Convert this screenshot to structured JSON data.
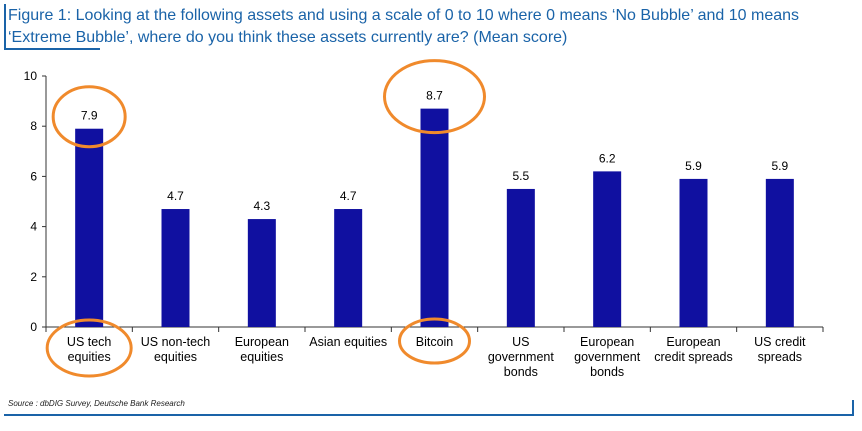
{
  "title": "Figure 1: Looking at the following assets and using a scale of 0 to 10 where 0 means ‘No Bubble’ and 10 means ‘Extreme Bubble’, where do you think these assets currently are? (Mean score)",
  "source": "Source : dbDIG Survey, Deutsche Bank Research",
  "colors": {
    "bar": "#1010a0",
    "highlight": "#f08a2c",
    "title": "#1a63a8",
    "axis": "#333333"
  },
  "chart_data": {
    "type": "bar",
    "title": "Figure 1: Looking at the following assets and using a scale of 0 to 10 where 0 means ‘No Bubble’ and 10 means ‘Extreme Bubble’, where do you think these assets currently are? (Mean score)",
    "categories": [
      [
        "US tech",
        "equities"
      ],
      [
        "US non-tech",
        "equities"
      ],
      [
        "European",
        "equities"
      ],
      [
        "Asian equities"
      ],
      [
        "Bitcoin"
      ],
      [
        "US",
        "government",
        "bonds"
      ],
      [
        "European",
        "government",
        "bonds"
      ],
      [
        "European",
        "credit spreads"
      ],
      [
        "US credit",
        "spreads"
      ]
    ],
    "values": [
      7.9,
      4.7,
      4.3,
      4.7,
      8.7,
      5.5,
      6.2,
      5.9,
      5.9
    ],
    "value_labels": [
      "7.9",
      "4.7",
      "4.3",
      "4.7",
      "8.7",
      "5.5",
      "6.2",
      "5.9",
      "5.9"
    ],
    "ylim": [
      0,
      10
    ],
    "yticks": [
      "0",
      "2",
      "4",
      "6",
      "8",
      "10"
    ],
    "highlighted": [
      "US tech equities",
      "Bitcoin"
    ],
    "grid": false,
    "legend": "none"
  }
}
